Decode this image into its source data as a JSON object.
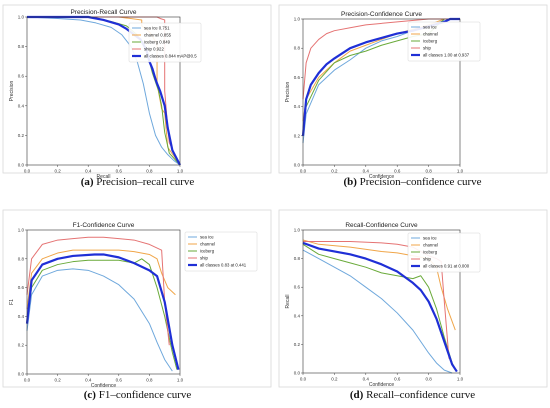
{
  "colors": {
    "sea_ice": "#6fa8dc",
    "channel": "#f0a64a",
    "iceberg": "#6aaa3a",
    "ship": "#e57373",
    "all": "#1f2fd6"
  },
  "captions": [
    {
      "letter": "(a)",
      "text": "Precision–recall curve"
    },
    {
      "letter": "(b)",
      "text": "Precision–confidence curve"
    },
    {
      "letter": "(c)",
      "text": "F1–confidence curve"
    },
    {
      "letter": "(d)",
      "text": "Recall–confidence curve"
    }
  ],
  "chart_data": [
    {
      "type": "line",
      "title": "Precision-Recall Curve",
      "xlabel": "Recall",
      "ylabel": "Precision",
      "xlim": [
        0,
        1
      ],
      "ylim": [
        0,
        1
      ],
      "xticks": [
        "0.0",
        "0.2",
        "0.4",
        "0.6",
        "0.8",
        "1.0"
      ],
      "yticks": [
        "0.0",
        "0.2",
        "0.4",
        "0.6",
        "0.8",
        "1.0"
      ],
      "legend_position": "top-right",
      "series": [
        {
          "name": "sea ice 0.751",
          "color_key": "sea_ice",
          "width": 1,
          "x": [
            0,
            0.2,
            0.35,
            0.45,
            0.55,
            0.62,
            0.68,
            0.72,
            0.76,
            0.8,
            0.84,
            0.88,
            0.92,
            0.96,
            1.0
          ],
          "y": [
            1.0,
            0.99,
            0.98,
            0.96,
            0.93,
            0.88,
            0.8,
            0.7,
            0.55,
            0.35,
            0.2,
            0.12,
            0.07,
            0.03,
            0.0
          ]
        },
        {
          "name": "channel 0.855",
          "color_key": "channel",
          "width": 1,
          "x": [
            0,
            0.6,
            0.75,
            0.75,
            0.8,
            0.85,
            0.85,
            0.88,
            0.9,
            0.92,
            1.0
          ],
          "y": [
            1.0,
            1.0,
            0.98,
            0.94,
            0.9,
            0.82,
            0.55,
            0.38,
            0.35,
            0.12,
            0.0
          ]
        },
        {
          "name": "iceberg 0.849",
          "color_key": "iceberg",
          "width": 1,
          "x": [
            0,
            0.4,
            0.55,
            0.65,
            0.72,
            0.78,
            0.82,
            0.86,
            0.88,
            0.9,
            0.93,
            1.0
          ],
          "y": [
            1.0,
            1.0,
            0.97,
            0.94,
            0.88,
            0.78,
            0.62,
            0.5,
            0.4,
            0.22,
            0.08,
            0.0
          ]
        },
        {
          "name": "ship 0.922",
          "color_key": "ship",
          "width": 1,
          "x": [
            0,
            0.85,
            0.87,
            0.9,
            0.9,
            0.92,
            0.93,
            1.0
          ],
          "y": [
            1.0,
            1.0,
            0.99,
            0.98,
            0.5,
            0.25,
            0.15,
            0.0
          ]
        },
        {
          "name": "all classes 0.844 mAP@0.5",
          "color_key": "all",
          "width": 2.2,
          "x": [
            0,
            0.4,
            0.5,
            0.6,
            0.65,
            0.7,
            0.74,
            0.78,
            0.8,
            0.82,
            0.84,
            0.85,
            0.87,
            0.9,
            0.92,
            0.95,
            1.0
          ],
          "y": [
            1.0,
            1.0,
            0.98,
            0.95,
            0.92,
            0.88,
            0.85,
            0.78,
            0.7,
            0.65,
            0.58,
            0.55,
            0.5,
            0.4,
            0.25,
            0.1,
            0.0
          ]
        }
      ]
    },
    {
      "type": "line",
      "title": "Precision-Confidence Curve",
      "xlabel": "Confidence",
      "ylabel": "Precision",
      "xlim": [
        0,
        1
      ],
      "ylim": [
        0,
        1
      ],
      "xticks": [
        "0.0",
        "0.2",
        "0.4",
        "0.6",
        "0.8",
        "1.0"
      ],
      "yticks": [
        "0.0",
        "0.2",
        "0.4",
        "0.6",
        "0.8",
        "1.0"
      ],
      "legend_position": "right",
      "series": [
        {
          "name": "sea ice",
          "color_key": "sea_ice",
          "width": 1,
          "x": [
            0,
            0.02,
            0.1,
            0.2,
            0.3,
            0.4,
            0.5,
            0.6,
            0.7,
            0.8,
            0.85,
            0.9
          ],
          "y": [
            0.15,
            0.35,
            0.55,
            0.65,
            0.72,
            0.8,
            0.85,
            0.88,
            0.92,
            0.95,
            0.97,
            0.99
          ]
        },
        {
          "name": "channel",
          "color_key": "channel",
          "width": 1,
          "x": [
            0,
            0.02,
            0.1,
            0.2,
            0.3,
            0.4,
            0.5,
            0.6,
            0.7,
            0.8,
            0.85,
            0.9
          ],
          "y": [
            0.3,
            0.45,
            0.6,
            0.7,
            0.78,
            0.82,
            0.86,
            0.9,
            0.93,
            0.96,
            0.98,
            1.0
          ]
        },
        {
          "name": "iceberg",
          "color_key": "iceberg",
          "width": 1,
          "x": [
            0,
            0.02,
            0.1,
            0.2,
            0.3,
            0.4,
            0.5,
            0.6,
            0.7,
            0.8,
            0.85,
            0.9
          ],
          "y": [
            0.25,
            0.4,
            0.58,
            0.7,
            0.75,
            0.78,
            0.82,
            0.85,
            0.88,
            0.9,
            0.95,
            1.0
          ]
        },
        {
          "name": "ship",
          "color_key": "ship",
          "width": 1,
          "x": [
            0,
            0.02,
            0.05,
            0.1,
            0.15,
            0.2,
            0.3,
            0.4,
            0.6,
            0.8,
            1.0
          ],
          "y": [
            0.45,
            0.7,
            0.8,
            0.86,
            0.9,
            0.92,
            0.94,
            0.96,
            0.98,
            1.0,
            1.0
          ]
        },
        {
          "name": "all classes 1.00 at 0.937",
          "color_key": "all",
          "width": 2.2,
          "x": [
            0,
            0.02,
            0.05,
            0.1,
            0.15,
            0.2,
            0.3,
            0.4,
            0.5,
            0.6,
            0.7,
            0.8,
            0.9,
            0.937,
            1.0
          ],
          "y": [
            0.2,
            0.45,
            0.55,
            0.63,
            0.69,
            0.73,
            0.8,
            0.84,
            0.87,
            0.9,
            0.92,
            0.95,
            0.98,
            1.0,
            1.0
          ]
        }
      ]
    },
    {
      "type": "line",
      "title": "F1-Confidence Curve",
      "xlabel": "Confidence",
      "ylabel": "F1",
      "xlim": [
        0,
        1
      ],
      "ylim": [
        0,
        1
      ],
      "xticks": [
        "0.0",
        "0.2",
        "0.4",
        "0.6",
        "0.8",
        "1.0"
      ],
      "yticks": [
        "0.0",
        "0.2",
        "0.4",
        "0.6",
        "0.8",
        "1.0"
      ],
      "legend_position": "right",
      "series": [
        {
          "name": "sea ice",
          "color_key": "sea_ice",
          "width": 1,
          "x": [
            0,
            0.03,
            0.1,
            0.2,
            0.3,
            0.4,
            0.5,
            0.6,
            0.7,
            0.8,
            0.85,
            0.9,
            0.95
          ],
          "y": [
            0.3,
            0.55,
            0.68,
            0.72,
            0.73,
            0.72,
            0.68,
            0.62,
            0.52,
            0.35,
            0.22,
            0.1,
            0.02
          ]
        },
        {
          "name": "channel",
          "color_key": "channel",
          "width": 1,
          "x": [
            0,
            0.03,
            0.1,
            0.2,
            0.3,
            0.4,
            0.5,
            0.6,
            0.7,
            0.8,
            0.85,
            0.88,
            0.92,
            0.97
          ],
          "y": [
            0.45,
            0.7,
            0.8,
            0.84,
            0.86,
            0.86,
            0.86,
            0.86,
            0.85,
            0.83,
            0.8,
            0.7,
            0.6,
            0.55
          ]
        },
        {
          "name": "iceberg",
          "color_key": "iceberg",
          "width": 1,
          "x": [
            0,
            0.03,
            0.1,
            0.2,
            0.3,
            0.4,
            0.5,
            0.6,
            0.7,
            0.75,
            0.8,
            0.85,
            0.9,
            0.95,
            0.98
          ],
          "y": [
            0.35,
            0.6,
            0.72,
            0.76,
            0.78,
            0.79,
            0.79,
            0.79,
            0.77,
            0.8,
            0.76,
            0.6,
            0.4,
            0.15,
            0.03
          ]
        },
        {
          "name": "ship",
          "color_key": "ship",
          "width": 1,
          "x": [
            0,
            0.03,
            0.1,
            0.2,
            0.3,
            0.4,
            0.5,
            0.6,
            0.7,
            0.8,
            0.88,
            0.9,
            0.93
          ],
          "y": [
            0.55,
            0.8,
            0.9,
            0.93,
            0.94,
            0.95,
            0.95,
            0.94,
            0.93,
            0.9,
            0.86,
            0.5,
            0.2
          ]
        },
        {
          "name": "all classes 0.83 at 0.441",
          "color_key": "all",
          "width": 2.2,
          "x": [
            0,
            0.03,
            0.1,
            0.2,
            0.3,
            0.441,
            0.5,
            0.6,
            0.7,
            0.8,
            0.85,
            0.9,
            0.95,
            0.99
          ],
          "y": [
            0.35,
            0.65,
            0.76,
            0.8,
            0.82,
            0.83,
            0.83,
            0.81,
            0.77,
            0.72,
            0.68,
            0.5,
            0.2,
            0.03
          ]
        }
      ]
    },
    {
      "type": "line",
      "title": "Recall-Confidence Curve",
      "xlabel": "Confidence",
      "ylabel": "Recall",
      "xlim": [
        0,
        1
      ],
      "ylim": [
        0,
        1
      ],
      "xticks": [
        "0.0",
        "0.2",
        "0.4",
        "0.6",
        "0.8",
        "1.0"
      ],
      "yticks": [
        "0.0",
        "0.2",
        "0.4",
        "0.6",
        "0.8",
        "1.0"
      ],
      "legend_position": "top-right",
      "series": [
        {
          "name": "sea ice",
          "color_key": "sea_ice",
          "width": 1,
          "x": [
            0,
            0.1,
            0.2,
            0.3,
            0.4,
            0.5,
            0.6,
            0.7,
            0.8,
            0.85,
            0.9,
            0.95
          ],
          "y": [
            0.86,
            0.8,
            0.74,
            0.68,
            0.6,
            0.52,
            0.42,
            0.3,
            0.14,
            0.07,
            0.02,
            0.0
          ]
        },
        {
          "name": "channel",
          "color_key": "channel",
          "width": 1,
          "x": [
            0,
            0.1,
            0.3,
            0.5,
            0.6,
            0.7,
            0.8,
            0.85,
            0.88,
            0.92,
            0.97
          ],
          "y": [
            0.93,
            0.9,
            0.88,
            0.85,
            0.84,
            0.82,
            0.8,
            0.74,
            0.6,
            0.45,
            0.3
          ]
        },
        {
          "name": "iceberg",
          "color_key": "iceberg",
          "width": 1,
          "x": [
            0,
            0.1,
            0.2,
            0.3,
            0.4,
            0.5,
            0.6,
            0.7,
            0.75,
            0.8,
            0.85,
            0.9,
            0.95,
            0.98
          ],
          "y": [
            0.9,
            0.83,
            0.8,
            0.77,
            0.74,
            0.7,
            0.68,
            0.66,
            0.68,
            0.6,
            0.45,
            0.25,
            0.07,
            0.01
          ]
        },
        {
          "name": "ship",
          "color_key": "ship",
          "width": 1,
          "x": [
            0,
            0.3,
            0.5,
            0.6,
            0.7,
            0.75,
            0.8,
            0.85,
            0.88,
            0.9,
            0.93
          ],
          "y": [
            0.92,
            0.92,
            0.91,
            0.9,
            0.88,
            0.85,
            0.82,
            0.8,
            0.78,
            0.5,
            0.1
          ]
        },
        {
          "name": "all classes 0.91 at 0.000",
          "color_key": "all",
          "width": 2.2,
          "x": [
            0,
            0.1,
            0.2,
            0.3,
            0.4,
            0.5,
            0.6,
            0.7,
            0.75,
            0.8,
            0.85,
            0.9,
            0.95,
            0.98
          ],
          "y": [
            0.91,
            0.87,
            0.85,
            0.83,
            0.8,
            0.76,
            0.71,
            0.63,
            0.58,
            0.5,
            0.38,
            0.22,
            0.06,
            0.01
          ]
        }
      ]
    }
  ]
}
